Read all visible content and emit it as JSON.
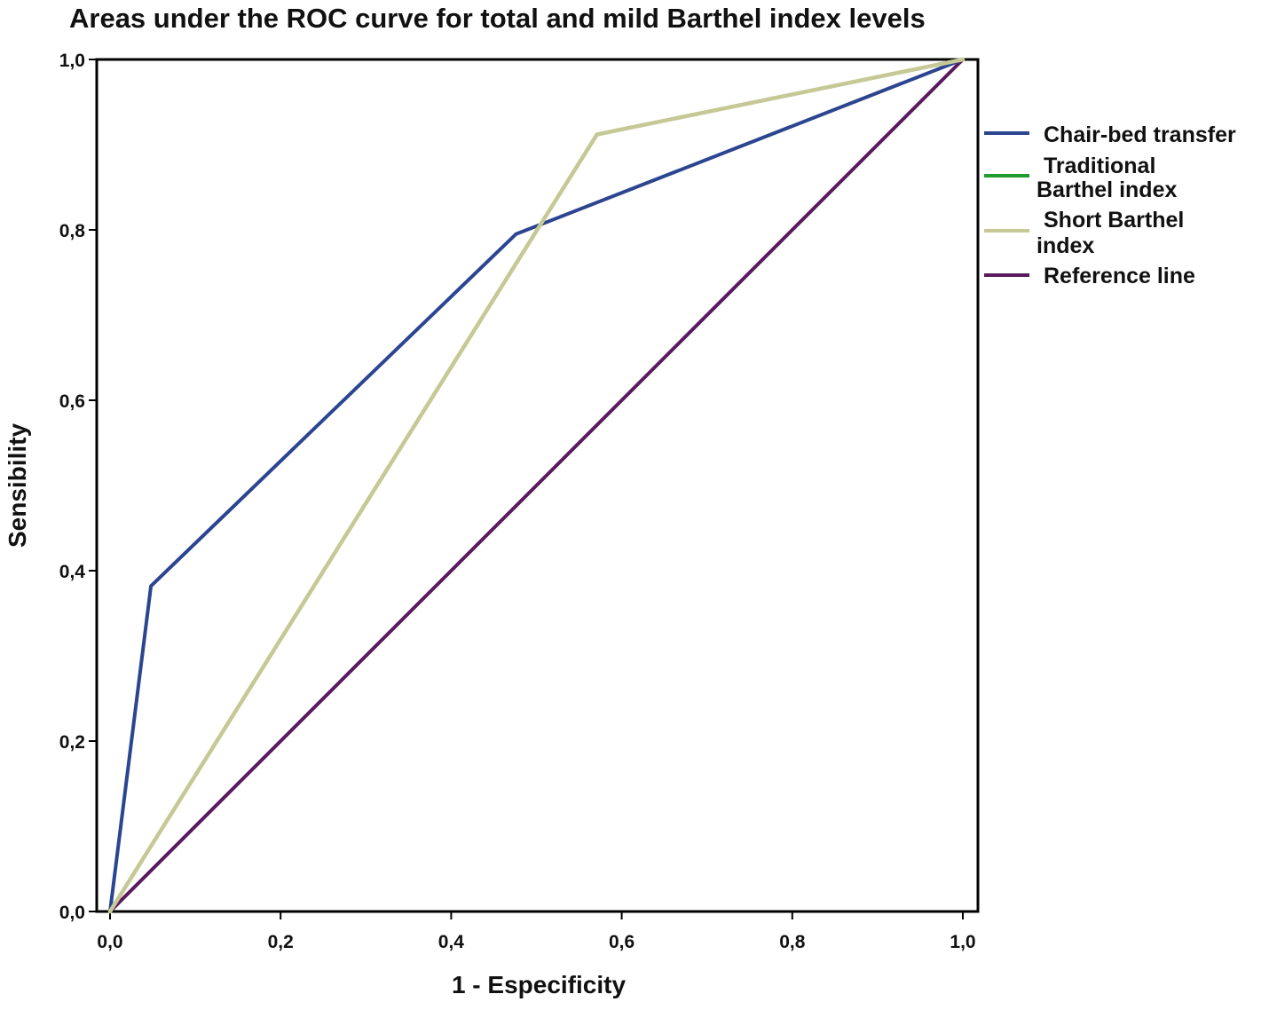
{
  "chart_data": {
    "type": "line",
    "title": "Areas under the ROC curve for total and mild Barthel index levels",
    "xlabel": "1 - Especificity",
    "ylabel": "Sensibility",
    "xlim": [
      0,
      1
    ],
    "ylim": [
      0,
      1
    ],
    "x_ticks": [
      "0,0",
      "0,2",
      "0,4",
      "0,6",
      "0,8",
      "1,0"
    ],
    "y_ticks": [
      "0,0",
      "0,2",
      "0,4",
      "0,6",
      "0,8",
      "1,0"
    ],
    "grid": false,
    "legend_position": "right",
    "series": [
      {
        "name": "Chair-bed transfer",
        "name_lines": [
          "Chair-bed transfer"
        ],
        "color": "#2b4590",
        "x": [
          0,
          0.048,
          0.476,
          1
        ],
        "y": [
          0,
          0.382,
          0.795,
          1
        ]
      },
      {
        "name": "Traditional Barthel index",
        "name_lines": [
          "Traditional",
          "Barthel index"
        ],
        "color": "#229c2f",
        "x": [
          0,
          0.571,
          1
        ],
        "y": [
          0,
          0.912,
          1
        ]
      },
      {
        "name": "Short Barthel index",
        "name_lines": [
          "Short Barthel",
          "index"
        ],
        "color": "#c6c995",
        "x": [
          0,
          0.571,
          1
        ],
        "y": [
          0,
          0.912,
          1
        ]
      },
      {
        "name": "Reference line",
        "name_lines": [
          "Reference line"
        ],
        "color": "#5a1a5e",
        "x": [
          0,
          1
        ],
        "y": [
          0,
          1
        ]
      }
    ]
  }
}
